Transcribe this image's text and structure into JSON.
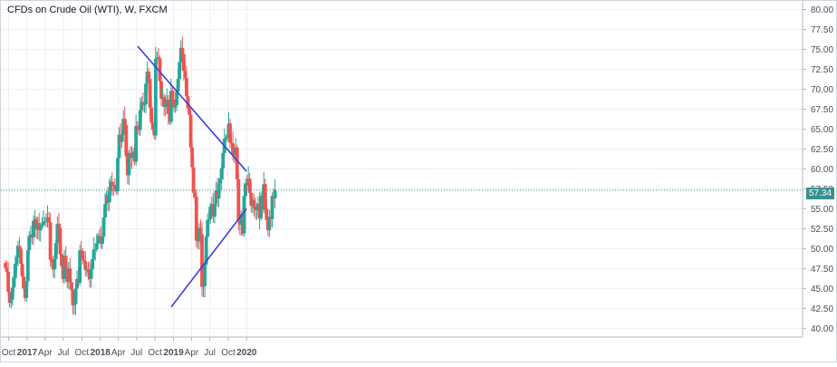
{
  "chart_data": {
    "type": "candlestick",
    "title": "CFDs on Crude Oil (WTI), W, FXCM",
    "current_price": "57.34",
    "y_ticks": [
      "80.00",
      "77.50",
      "75.00",
      "72.50",
      "70.00",
      "67.50",
      "65.00",
      "62.50",
      "60.00",
      "57.50",
      "55.00",
      "52.50",
      "50.00",
      "47.50",
      "45.00",
      "42.50",
      "40.00"
    ],
    "ylim": [
      38.9,
      81.2
    ],
    "x_ticks": [
      {
        "label": "Oct",
        "date": "2016-10-01",
        "bold": false
      },
      {
        "label": "2017",
        "date": "2017-01-01",
        "bold": true
      },
      {
        "label": "Apr",
        "date": "2017-04-01",
        "bold": false
      },
      {
        "label": "Jul",
        "date": "2017-07-01",
        "bold": false
      },
      {
        "label": "Oct",
        "date": "2017-10-01",
        "bold": false
      },
      {
        "label": "2018",
        "date": "2018-01-01",
        "bold": true
      },
      {
        "label": "Apr",
        "date": "2018-04-01",
        "bold": false
      },
      {
        "label": "Jul",
        "date": "2018-07-01",
        "bold": false
      },
      {
        "label": "Oct",
        "date": "2018-10-01",
        "bold": false
      },
      {
        "label": "2019",
        "date": "2019-01-01",
        "bold": true
      },
      {
        "label": "Apr",
        "date": "2019-04-01",
        "bold": false
      },
      {
        "label": "Jul",
        "date": "2019-07-01",
        "bold": false
      },
      {
        "label": "Oct",
        "date": "2019-10-01",
        "bold": false
      },
      {
        "label": "2020",
        "date": "2020-01-01",
        "bold": true
      }
    ],
    "start_date": "2016-08-19",
    "closes": [
      47.6,
      47.1,
      44.6,
      43.2,
      43.6,
      45.1,
      46.3,
      48.1,
      48.9,
      50.3,
      50.0,
      48.1,
      46.5,
      45.0,
      43.8,
      45.9,
      49.8,
      51.6,
      51.8,
      51.4,
      53.5,
      53.7,
      52.4,
      53.2,
      52.3,
      52.8,
      53.0,
      53.4,
      53.4,
      53.3,
      53.9,
      53.3,
      48.6,
      48.3,
      47.4,
      48.7,
      50.7,
      53.1,
      52.6,
      49.3,
      47.8,
      46.2,
      49.1,
      47.5,
      45.8,
      47.5,
      45.8,
      44.8,
      42.9,
      43.0,
      45.0,
      46.2,
      45.7,
      49.8,
      49.7,
      48.6,
      48.4,
      47.3,
      47.4,
      47.0,
      46.2,
      47.5,
      48.7,
      49.9,
      49.9,
      50.7,
      51.6,
      51.5,
      50.6,
      51.5,
      53.9,
      55.6,
      56.7,
      55.8,
      57.2,
      58.4,
      58.0,
      58.0,
      57.4,
      57.2,
      61.4,
      64.3,
      63.4,
      64.3,
      66.3,
      65.5,
      61.6,
      59.2,
      62.0,
      61.6,
      61.4,
      62.2,
      60.9,
      65.4,
      65.0,
      64.9,
      67.4,
      68.4,
      68.1,
      68.1,
      70.7,
      72.2,
      71.3,
      67.7,
      65.8,
      64.9,
      64.2,
      73.8,
      74.0,
      73.9,
      71.0,
      68.8,
      69.0,
      67.8,
      68.3,
      68.7,
      66.9,
      65.9,
      69.8,
      68.7,
      67.7,
      68.0,
      69.7,
      71.3,
      73.4,
      75.2,
      74.4,
      72.3,
      71.4,
      69.1,
      67.6,
      66.8,
      62.7,
      60.2,
      57.0,
      56.5,
      51.0,
      50.9,
      52.6,
      51.8,
      45.2,
      45.3,
      48.0,
      51.5,
      53.6,
      53.7,
      55.3,
      55.6,
      54.0,
      55.6,
      57.3,
      56.3,
      58.2,
      58.7,
      60.1,
      62.0,
      63.8,
      63.9,
      64.1,
      65.7,
      63.3,
      63.2,
      61.9,
      61.7,
      62.7,
      58.7,
      53.5,
      53.0,
      54.3,
      51.9,
      56.6,
      58.2,
      57.9,
      58.8,
      57.0,
      55.4,
      56.1,
      55.1,
      54.8,
      55.3,
      55.6,
      53.8,
      56.6,
      54.9,
      58.1,
      55.0,
      53.6,
      52.3,
      54.0,
      53.7,
      56.6,
      56.3,
      57.3
    ],
    "trendlines": [
      {
        "from": [
          "2018-07-06",
          75.4
        ],
        "to": [
          "2019-12-31",
          59.7
        ],
        "color": "#3a3fd9"
      },
      {
        "from": [
          "2018-12-21",
          42.7
        ],
        "to": [
          "2019-12-31",
          55.0
        ],
        "color": "#3a3fd9"
      }
    ],
    "up_color": "#26a69a",
    "down_color": "#ef5350"
  }
}
